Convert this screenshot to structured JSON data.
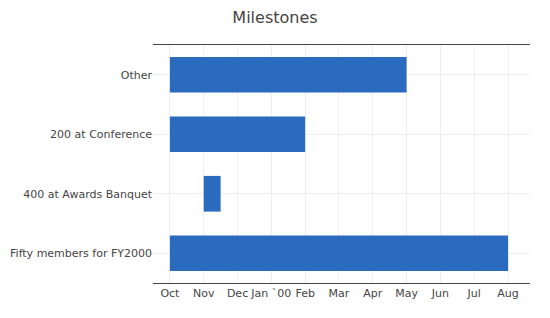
{
  "chart_data": {
    "type": "bar",
    "title": "Milestones",
    "orientation": "horizontal",
    "categories": [
      "Fifty members for FY2000",
      "400 at Awards Banquet",
      "200 at Conference",
      "Other"
    ],
    "starts": [
      0,
      1,
      0,
      0
    ],
    "ends": [
      10,
      1.5,
      4,
      7
    ],
    "color": "#2b6bbf",
    "xlim": [
      -0.5,
      10.65
    ],
    "xticks": [
      {
        "value": 0,
        "label": "Oct"
      },
      {
        "value": 1,
        "label": "Nov"
      },
      {
        "value": 2,
        "label": "Dec"
      },
      {
        "value": 3,
        "label": "Jan `00"
      },
      {
        "value": 4,
        "label": "Feb"
      },
      {
        "value": 5,
        "label": "Mar"
      },
      {
        "value": 6,
        "label": "Apr"
      },
      {
        "value": 7,
        "label": "May"
      },
      {
        "value": 8,
        "label": "Jun"
      },
      {
        "value": 9,
        "label": "Jul"
      },
      {
        "value": 10,
        "label": "Aug"
      }
    ],
    "grid": true
  }
}
